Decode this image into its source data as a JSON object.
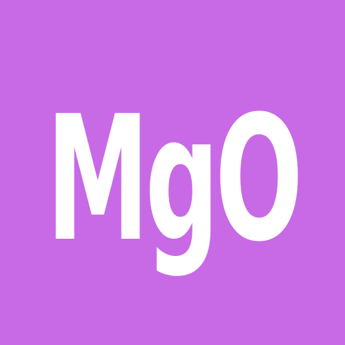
{
  "tile": {
    "text": "MgO",
    "background_color": "#c86ae6",
    "text_color": "#ffffff"
  }
}
